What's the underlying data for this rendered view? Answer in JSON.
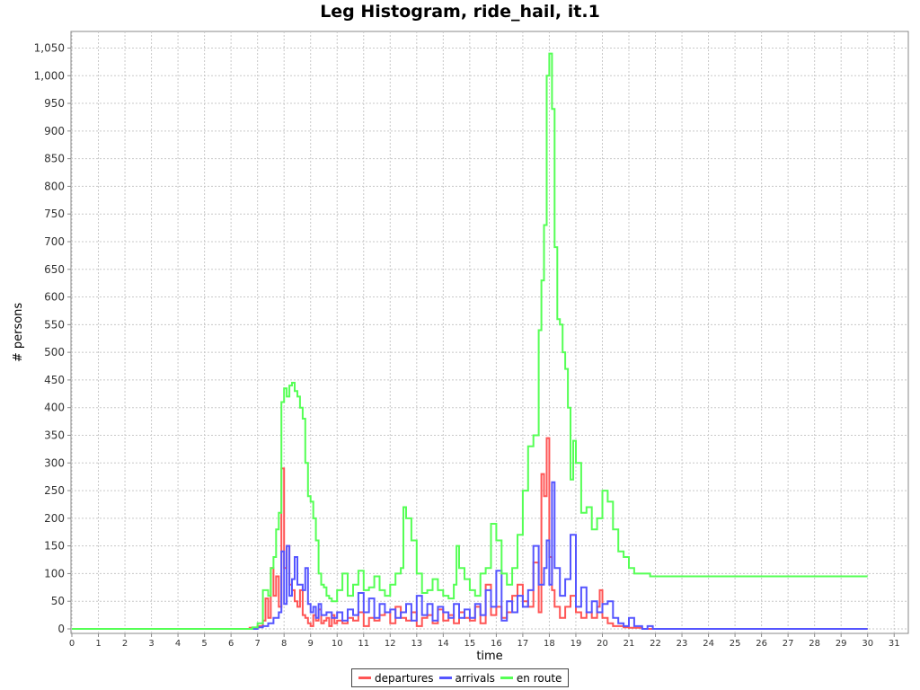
{
  "chart_data": {
    "type": "line",
    "title": "Leg Histogram, ride_hail, it.1",
    "xlabel": "time",
    "ylabel": "# persons",
    "xlim": [
      0,
      31.5
    ],
    "ylim": [
      0,
      1080
    ],
    "x_ticks": [
      "0",
      "1",
      "2",
      "3",
      "4",
      "5",
      "6",
      "7",
      "8",
      "9",
      "10",
      "11",
      "12",
      "13",
      "14",
      "15",
      "16",
      "17",
      "18",
      "19",
      "20",
      "21",
      "22",
      "23",
      "24",
      "25",
      "26",
      "27",
      "28",
      "29",
      "30",
      "31"
    ],
    "y_ticks": [
      "0",
      "50",
      "100",
      "150",
      "200",
      "250",
      "300",
      "350",
      "400",
      "450",
      "500",
      "550",
      "600",
      "650",
      "700",
      "750",
      "800",
      "850",
      "900",
      "950",
      "1,000",
      "1,050"
    ],
    "grid": true,
    "legend_position": "bottom",
    "series": [
      {
        "name": "departures",
        "color": "#ff5555",
        "points": [
          [
            0,
            0
          ],
          [
            6.5,
            0
          ],
          [
            6.7,
            2
          ],
          [
            7.0,
            5
          ],
          [
            7.2,
            15
          ],
          [
            7.3,
            55
          ],
          [
            7.4,
            20
          ],
          [
            7.5,
            110
          ],
          [
            7.6,
            60
          ],
          [
            7.7,
            95
          ],
          [
            7.8,
            40
          ],
          [
            7.9,
            290
          ],
          [
            8.0,
            110
          ],
          [
            8.1,
            150
          ],
          [
            8.2,
            80
          ],
          [
            8.3,
            70
          ],
          [
            8.4,
            50
          ],
          [
            8.5,
            40
          ],
          [
            8.6,
            70
          ],
          [
            8.7,
            25
          ],
          [
            8.8,
            20
          ],
          [
            8.9,
            10
          ],
          [
            9.0,
            5
          ],
          [
            9.1,
            25
          ],
          [
            9.2,
            15
          ],
          [
            9.3,
            35
          ],
          [
            9.4,
            10
          ],
          [
            9.5,
            15
          ],
          [
            9.6,
            20
          ],
          [
            9.7,
            5
          ],
          [
            9.8,
            25
          ],
          [
            9.9,
            10
          ],
          [
            10.0,
            15
          ],
          [
            10.2,
            10
          ],
          [
            10.4,
            20
          ],
          [
            10.6,
            15
          ],
          [
            10.8,
            30
          ],
          [
            11.0,
            5
          ],
          [
            11.2,
            20
          ],
          [
            11.4,
            15
          ],
          [
            11.6,
            25
          ],
          [
            11.8,
            30
          ],
          [
            12.0,
            10
          ],
          [
            12.2,
            40
          ],
          [
            12.4,
            20
          ],
          [
            12.6,
            15
          ],
          [
            12.8,
            30
          ],
          [
            13.0,
            5
          ],
          [
            13.2,
            20
          ],
          [
            13.4,
            25
          ],
          [
            13.6,
            10
          ],
          [
            13.8,
            35
          ],
          [
            14.0,
            15
          ],
          [
            14.2,
            25
          ],
          [
            14.4,
            10
          ],
          [
            14.6,
            30
          ],
          [
            14.8,
            20
          ],
          [
            15.0,
            15
          ],
          [
            15.2,
            40
          ],
          [
            15.4,
            10
          ],
          [
            15.6,
            80
          ],
          [
            15.8,
            25
          ],
          [
            16.0,
            40
          ],
          [
            16.2,
            20
          ],
          [
            16.4,
            30
          ],
          [
            16.6,
            60
          ],
          [
            16.8,
            80
          ],
          [
            17.0,
            50
          ],
          [
            17.2,
            40
          ],
          [
            17.4,
            120
          ],
          [
            17.6,
            30
          ],
          [
            17.7,
            280
          ],
          [
            17.8,
            240
          ],
          [
            17.9,
            345
          ],
          [
            18.0,
            130
          ],
          [
            18.1,
            70
          ],
          [
            18.2,
            40
          ],
          [
            18.4,
            20
          ],
          [
            18.6,
            40
          ],
          [
            18.8,
            60
          ],
          [
            19.0,
            30
          ],
          [
            19.2,
            20
          ],
          [
            19.4,
            30
          ],
          [
            19.6,
            20
          ],
          [
            19.8,
            40
          ],
          [
            19.9,
            70
          ],
          [
            20.0,
            20
          ],
          [
            20.2,
            10
          ],
          [
            20.4,
            5
          ],
          [
            20.6,
            5
          ],
          [
            20.8,
            3
          ],
          [
            21.0,
            2
          ],
          [
            21.5,
            0
          ],
          [
            30,
            0
          ]
        ]
      },
      {
        "name": "arrivals",
        "color": "#5555ff",
        "points": [
          [
            0,
            0
          ],
          [
            6.8,
            0
          ],
          [
            7.0,
            3
          ],
          [
            7.2,
            5
          ],
          [
            7.4,
            10
          ],
          [
            7.6,
            20
          ],
          [
            7.8,
            30
          ],
          [
            7.9,
            140
          ],
          [
            8.0,
            45
          ],
          [
            8.1,
            150
          ],
          [
            8.2,
            60
          ],
          [
            8.3,
            90
          ],
          [
            8.4,
            130
          ],
          [
            8.5,
            80
          ],
          [
            8.7,
            70
          ],
          [
            8.8,
            110
          ],
          [
            8.9,
            45
          ],
          [
            9.0,
            30
          ],
          [
            9.1,
            40
          ],
          [
            9.2,
            20
          ],
          [
            9.3,
            45
          ],
          [
            9.4,
            25
          ],
          [
            9.6,
            30
          ],
          [
            9.8,
            20
          ],
          [
            10.0,
            30
          ],
          [
            10.2,
            15
          ],
          [
            10.4,
            35
          ],
          [
            10.6,
            25
          ],
          [
            10.8,
            65
          ],
          [
            11.0,
            30
          ],
          [
            11.2,
            55
          ],
          [
            11.4,
            20
          ],
          [
            11.6,
            45
          ],
          [
            11.8,
            30
          ],
          [
            12.0,
            35
          ],
          [
            12.2,
            20
          ],
          [
            12.4,
            30
          ],
          [
            12.6,
            45
          ],
          [
            12.8,
            15
          ],
          [
            13.0,
            60
          ],
          [
            13.2,
            25
          ],
          [
            13.4,
            45
          ],
          [
            13.6,
            15
          ],
          [
            13.8,
            40
          ],
          [
            14.0,
            30
          ],
          [
            14.2,
            20
          ],
          [
            14.4,
            45
          ],
          [
            14.6,
            20
          ],
          [
            14.8,
            35
          ],
          [
            15.0,
            20
          ],
          [
            15.2,
            45
          ],
          [
            15.4,
            25
          ],
          [
            15.6,
            70
          ],
          [
            15.8,
            40
          ],
          [
            16.0,
            105
          ],
          [
            16.2,
            15
          ],
          [
            16.4,
            50
          ],
          [
            16.6,
            30
          ],
          [
            16.8,
            60
          ],
          [
            17.0,
            40
          ],
          [
            17.2,
            70
          ],
          [
            17.4,
            150
          ],
          [
            17.6,
            80
          ],
          [
            17.8,
            110
          ],
          [
            17.9,
            160
          ],
          [
            18.0,
            80
          ],
          [
            18.1,
            265
          ],
          [
            18.2,
            110
          ],
          [
            18.4,
            60
          ],
          [
            18.6,
            90
          ],
          [
            18.8,
            170
          ],
          [
            19.0,
            40
          ],
          [
            19.2,
            75
          ],
          [
            19.4,
            30
          ],
          [
            19.6,
            50
          ],
          [
            19.8,
            30
          ],
          [
            20.0,
            45
          ],
          [
            20.2,
            50
          ],
          [
            20.4,
            20
          ],
          [
            20.6,
            10
          ],
          [
            20.8,
            5
          ],
          [
            21.0,
            20
          ],
          [
            21.2,
            5
          ],
          [
            21.5,
            0
          ],
          [
            21.7,
            5
          ],
          [
            21.9,
            0
          ],
          [
            30,
            0
          ]
        ]
      },
      {
        "name": "en route",
        "color": "#55ff55",
        "points": [
          [
            0,
            0
          ],
          [
            6.5,
            0
          ],
          [
            6.8,
            3
          ],
          [
            7.0,
            10
          ],
          [
            7.2,
            70
          ],
          [
            7.4,
            60
          ],
          [
            7.5,
            110
          ],
          [
            7.6,
            130
          ],
          [
            7.7,
            180
          ],
          [
            7.8,
            210
          ],
          [
            7.9,
            410
          ],
          [
            8.0,
            435
          ],
          [
            8.1,
            420
          ],
          [
            8.2,
            440
          ],
          [
            8.3,
            445
          ],
          [
            8.4,
            430
          ],
          [
            8.5,
            420
          ],
          [
            8.6,
            400
          ],
          [
            8.7,
            380
          ],
          [
            8.8,
            300
          ],
          [
            8.9,
            240
          ],
          [
            9.0,
            230
          ],
          [
            9.1,
            200
          ],
          [
            9.2,
            160
          ],
          [
            9.3,
            100
          ],
          [
            9.4,
            80
          ],
          [
            9.5,
            75
          ],
          [
            9.6,
            60
          ],
          [
            9.7,
            55
          ],
          [
            9.8,
            50
          ],
          [
            10.0,
            70
          ],
          [
            10.2,
            100
          ],
          [
            10.4,
            60
          ],
          [
            10.6,
            80
          ],
          [
            10.8,
            105
          ],
          [
            11.0,
            70
          ],
          [
            11.2,
            75
          ],
          [
            11.4,
            95
          ],
          [
            11.6,
            70
          ],
          [
            11.8,
            60
          ],
          [
            12.0,
            80
          ],
          [
            12.2,
            100
          ],
          [
            12.4,
            110
          ],
          [
            12.5,
            220
          ],
          [
            12.6,
            200
          ],
          [
            12.8,
            160
          ],
          [
            13.0,
            100
          ],
          [
            13.2,
            65
          ],
          [
            13.4,
            70
          ],
          [
            13.6,
            90
          ],
          [
            13.8,
            70
          ],
          [
            14.0,
            60
          ],
          [
            14.2,
            55
          ],
          [
            14.4,
            80
          ],
          [
            14.5,
            150
          ],
          [
            14.6,
            110
          ],
          [
            14.8,
            90
          ],
          [
            15.0,
            70
          ],
          [
            15.2,
            60
          ],
          [
            15.4,
            100
          ],
          [
            15.6,
            110
          ],
          [
            15.8,
            190
          ],
          [
            16.0,
            160
          ],
          [
            16.2,
            100
          ],
          [
            16.4,
            80
          ],
          [
            16.6,
            110
          ],
          [
            16.8,
            170
          ],
          [
            17.0,
            250
          ],
          [
            17.2,
            330
          ],
          [
            17.4,
            350
          ],
          [
            17.6,
            540
          ],
          [
            17.7,
            630
          ],
          [
            17.8,
            730
          ],
          [
            17.9,
            1000
          ],
          [
            18.0,
            1040
          ],
          [
            18.1,
            940
          ],
          [
            18.2,
            690
          ],
          [
            18.3,
            560
          ],
          [
            18.4,
            550
          ],
          [
            18.5,
            500
          ],
          [
            18.6,
            470
          ],
          [
            18.7,
            400
          ],
          [
            18.8,
            270
          ],
          [
            18.9,
            340
          ],
          [
            19.0,
            300
          ],
          [
            19.2,
            210
          ],
          [
            19.4,
            220
          ],
          [
            19.6,
            180
          ],
          [
            19.8,
            200
          ],
          [
            20.0,
            250
          ],
          [
            20.2,
            230
          ],
          [
            20.4,
            180
          ],
          [
            20.6,
            140
          ],
          [
            20.8,
            130
          ],
          [
            21.0,
            110
          ],
          [
            21.2,
            100
          ],
          [
            21.4,
            100
          ],
          [
            21.8,
            95
          ],
          [
            22.0,
            95
          ],
          [
            30,
            95
          ]
        ]
      }
    ]
  }
}
